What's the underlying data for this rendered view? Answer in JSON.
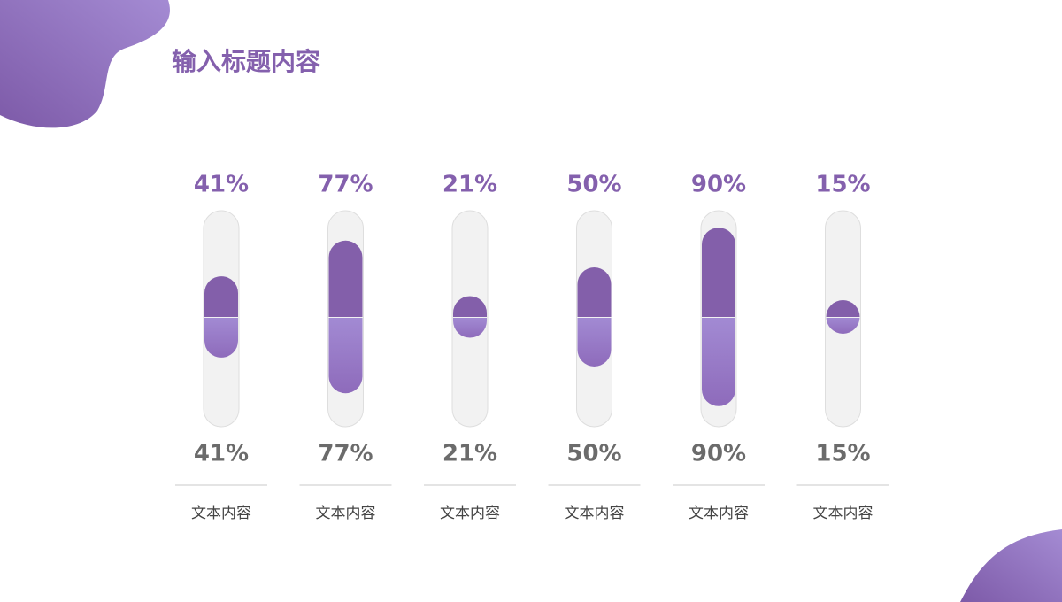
{
  "title": "输入标题内容",
  "chart_data": {
    "type": "capsule",
    "categories": [
      "文本内容",
      "文本内容",
      "文本内容",
      "文本内容",
      "文本内容",
      "文本内容"
    ],
    "series": [
      {
        "color": "#835faa",
        "values": [
          41,
          77,
          21,
          50,
          90,
          15
        ],
        "value_labels": [
          "41%",
          "77%",
          "21%",
          "50%",
          "90%",
          "15%"
        ]
      },
      {
        "color": "#9a82cc",
        "values": [
          41,
          77,
          21,
          50,
          90,
          15
        ],
        "value_labels": [
          "41%",
          "77%",
          "21%",
          "50%",
          "90%",
          "15%"
        ]
      }
    ],
    "ylim": [
      0,
      100
    ]
  }
}
